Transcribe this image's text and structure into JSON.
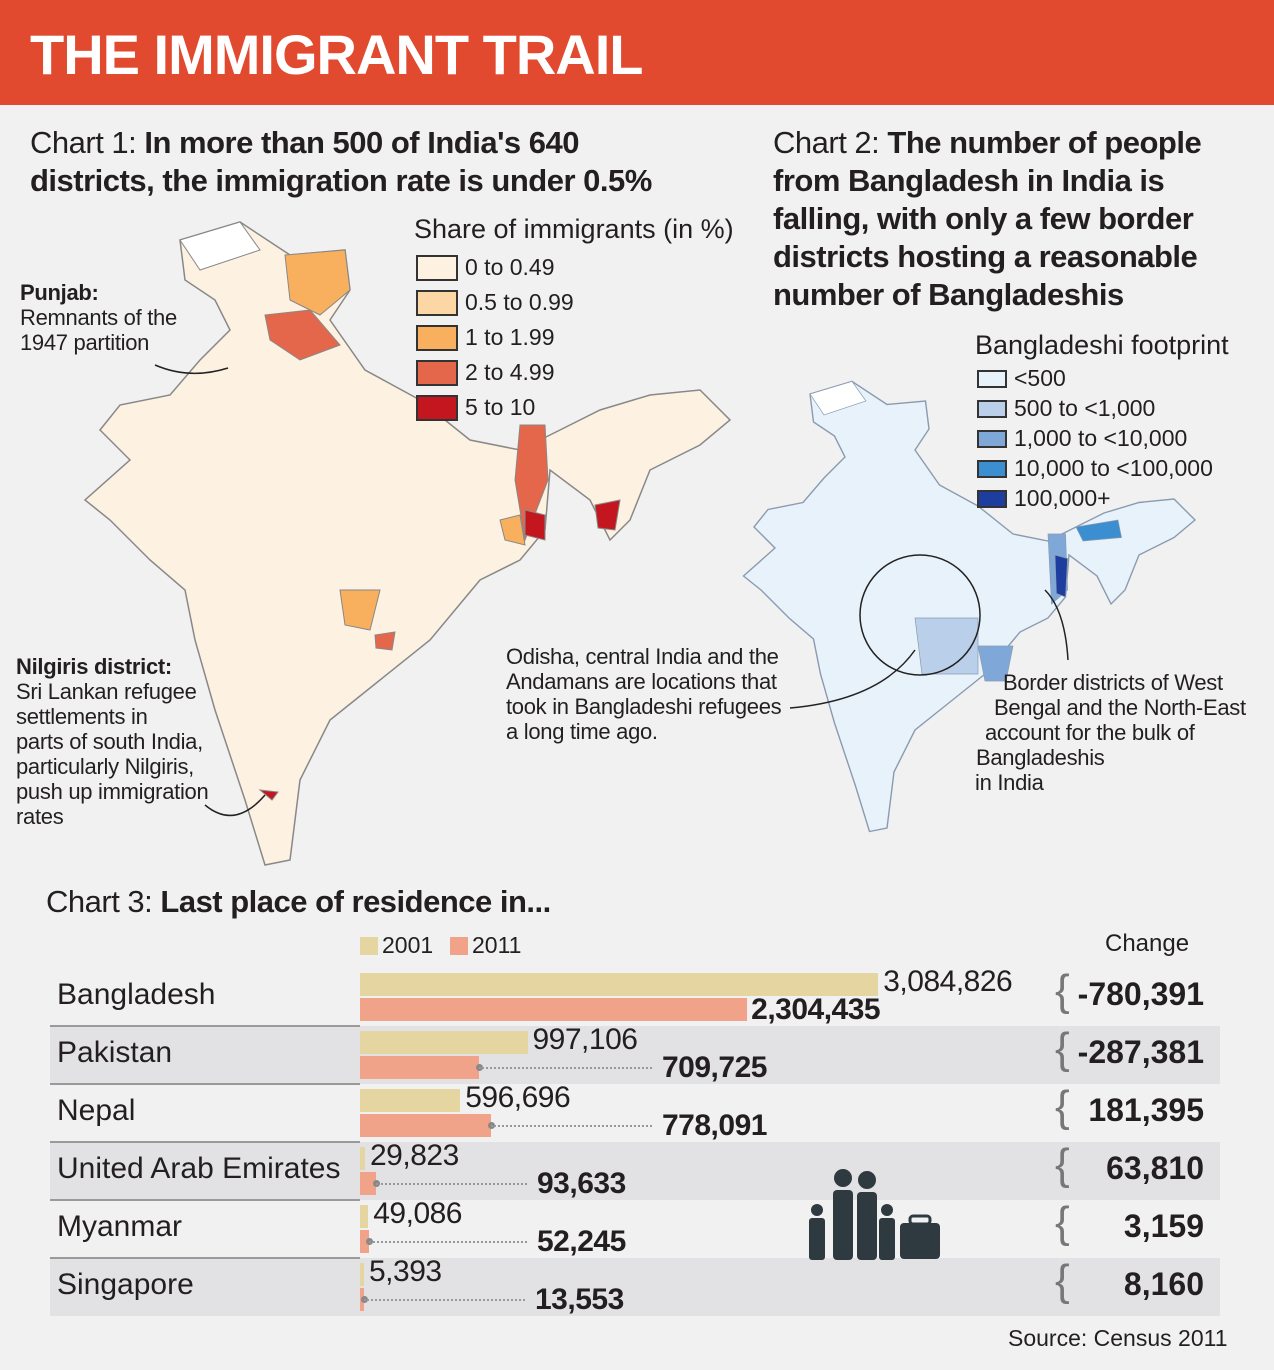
{
  "header": {
    "title": "THE IMMIGRANT TRAIL"
  },
  "chart1": {
    "prefix": "Chart 1: ",
    "title_line1": "In more than 500 of India's 640",
    "title_line2": "districts, the immigration rate is under 0.5%",
    "legend_title": "Share of immigrants (in %)",
    "legend": [
      {
        "label": "0 to 0.49",
        "color": "#fdf1e1"
      },
      {
        "label": "0.5 to 0.99",
        "color": "#fdd6a6"
      },
      {
        "label": "1 to 1.99",
        "color": "#f9b05e"
      },
      {
        "label": "2 to 4.99",
        "color": "#e4674b"
      },
      {
        "label": "5 to 10",
        "color": "#c3161f"
      }
    ],
    "annotations": {
      "punjab_head": "Punjab:",
      "punjab_1": "Remnants of the",
      "punjab_2": "1947 partition",
      "nilgiris_head": "Nilgiris district:",
      "nilgiris": [
        "Sri Lankan refugee",
        "settlements in",
        "parts of south India,",
        "particularly Nilgiris,",
        "push up immigration",
        "rates"
      ]
    }
  },
  "chart2": {
    "prefix": "Chart 2: ",
    "title_lines": [
      "The number of people",
      "from Bangladesh in India is",
      "falling, with only a few border",
      "districts hosting a reasonable",
      "number of Bangladeshis"
    ],
    "legend_title": "Bangladeshi footprint",
    "legend": [
      {
        "label": "<500",
        "color": "#e8f2fb"
      },
      {
        "label": "500 to <1,000",
        "color": "#b9cfea"
      },
      {
        "label": "1,000 to <10,000",
        "color": "#7fa8d8"
      },
      {
        "label": "10,000 to <100,000",
        "color": "#3b8fd0"
      },
      {
        "label": "100,000+",
        "color": "#1d3e9e"
      }
    ],
    "annotations": {
      "odisha": [
        "Odisha, central India and the",
        "Andamans are locations that",
        "took in Bangladeshi refugees",
        "a long time ago."
      ],
      "border": [
        "Border districts of West",
        "Bengal and the North-East",
        "account for the bulk of",
        "Bangladeshis",
        "in India"
      ]
    }
  },
  "chart3": {
    "prefix": "Chart 3: ",
    "title": "Last place of residence in...",
    "change_label": "Change",
    "source": "Source: Census 2011"
  },
  "chart_data": {
    "type": "bar",
    "orientation": "horizontal",
    "categories": [
      "Bangladesh",
      "Pakistan",
      "Nepal",
      "United Arab Emirates",
      "Myanmar",
      "Singapore"
    ],
    "series": [
      {
        "name": "2001",
        "color": "#e5d6a1",
        "values": [
          3084826,
          997106,
          596696,
          29823,
          49086,
          5393
        ],
        "labels": [
          "3,084,826",
          "997,106",
          "596,696",
          "29,823",
          "49,086",
          "5,393"
        ]
      },
      {
        "name": "2011",
        "color": "#f0a389",
        "values": [
          2304435,
          709725,
          778091,
          93633,
          52245,
          13553
        ],
        "labels": [
          "2,304,435",
          "709,725",
          "778,091",
          "93,633",
          "52,245",
          "13,553"
        ]
      }
    ],
    "change": [
      "-780,391",
      "-287,381",
      "181,395",
      "63,810",
      "3,159",
      "8,160"
    ]
  }
}
